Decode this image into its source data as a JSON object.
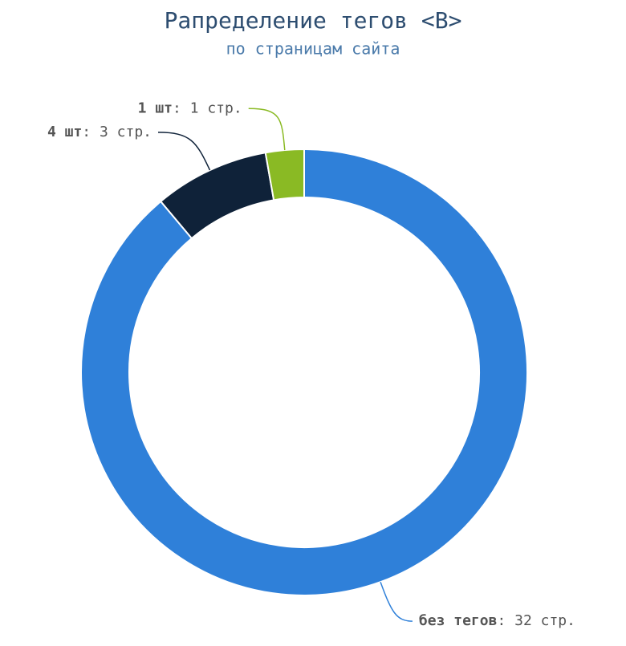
{
  "chart_data": {
    "type": "donut",
    "title": "Рапределение тегов <B>",
    "subtitle": "по страницам сайта",
    "categories": [
      "без тегов",
      "4 шт",
      "1 шт"
    ],
    "values": [
      32,
      3,
      1
    ],
    "value_labels": [
      ": 32 стр.",
      ": 3 стр.",
      ": 1 стр."
    ],
    "colors": [
      "#2f80d9",
      "#0f2239",
      "#8aba24"
    ]
  }
}
